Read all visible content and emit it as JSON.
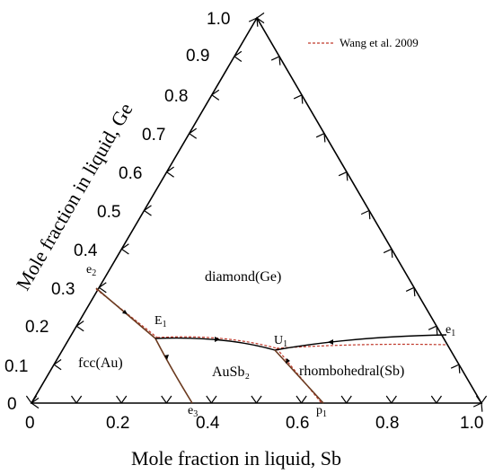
{
  "axes": {
    "sb_title": "Mole fraction in liquid, Sb",
    "ge_title": "Mole fraction in liquid, Ge",
    "sb_ticks": [
      "0",
      "0.2",
      "0.4",
      "0.6",
      "0.8",
      "1.0"
    ],
    "ge_ticks": [
      "0",
      "0.1",
      "0.2",
      "0.3",
      "0.4",
      "0.5",
      "0.6",
      "0.7",
      "0.8",
      "0.9",
      "1.0"
    ]
  },
  "legend": {
    "label": "Wang et al.  2009",
    "color": "#c0392b"
  },
  "regions": {
    "diamond": "diamond(Ge)",
    "fcc": "fcc(Au)",
    "ausb2": "AuSb₂",
    "rhombo": "rhombohedral(Sb)"
  },
  "points": {
    "e2": {
      "base": "e",
      "sub": "2"
    },
    "e1": {
      "base": "e",
      "sub": "1"
    },
    "e3": {
      "base": "e",
      "sub": "3"
    },
    "E1": {
      "base": "E",
      "sub": "1"
    },
    "U1": {
      "base": "U",
      "sub": "1"
    },
    "p1": {
      "base": "p",
      "sub": "1"
    }
  },
  "colors": {
    "frame": "#000000",
    "calc_line": "#000000",
    "exp_line": "#c0392b",
    "boundary": "#6b3a1f"
  }
}
